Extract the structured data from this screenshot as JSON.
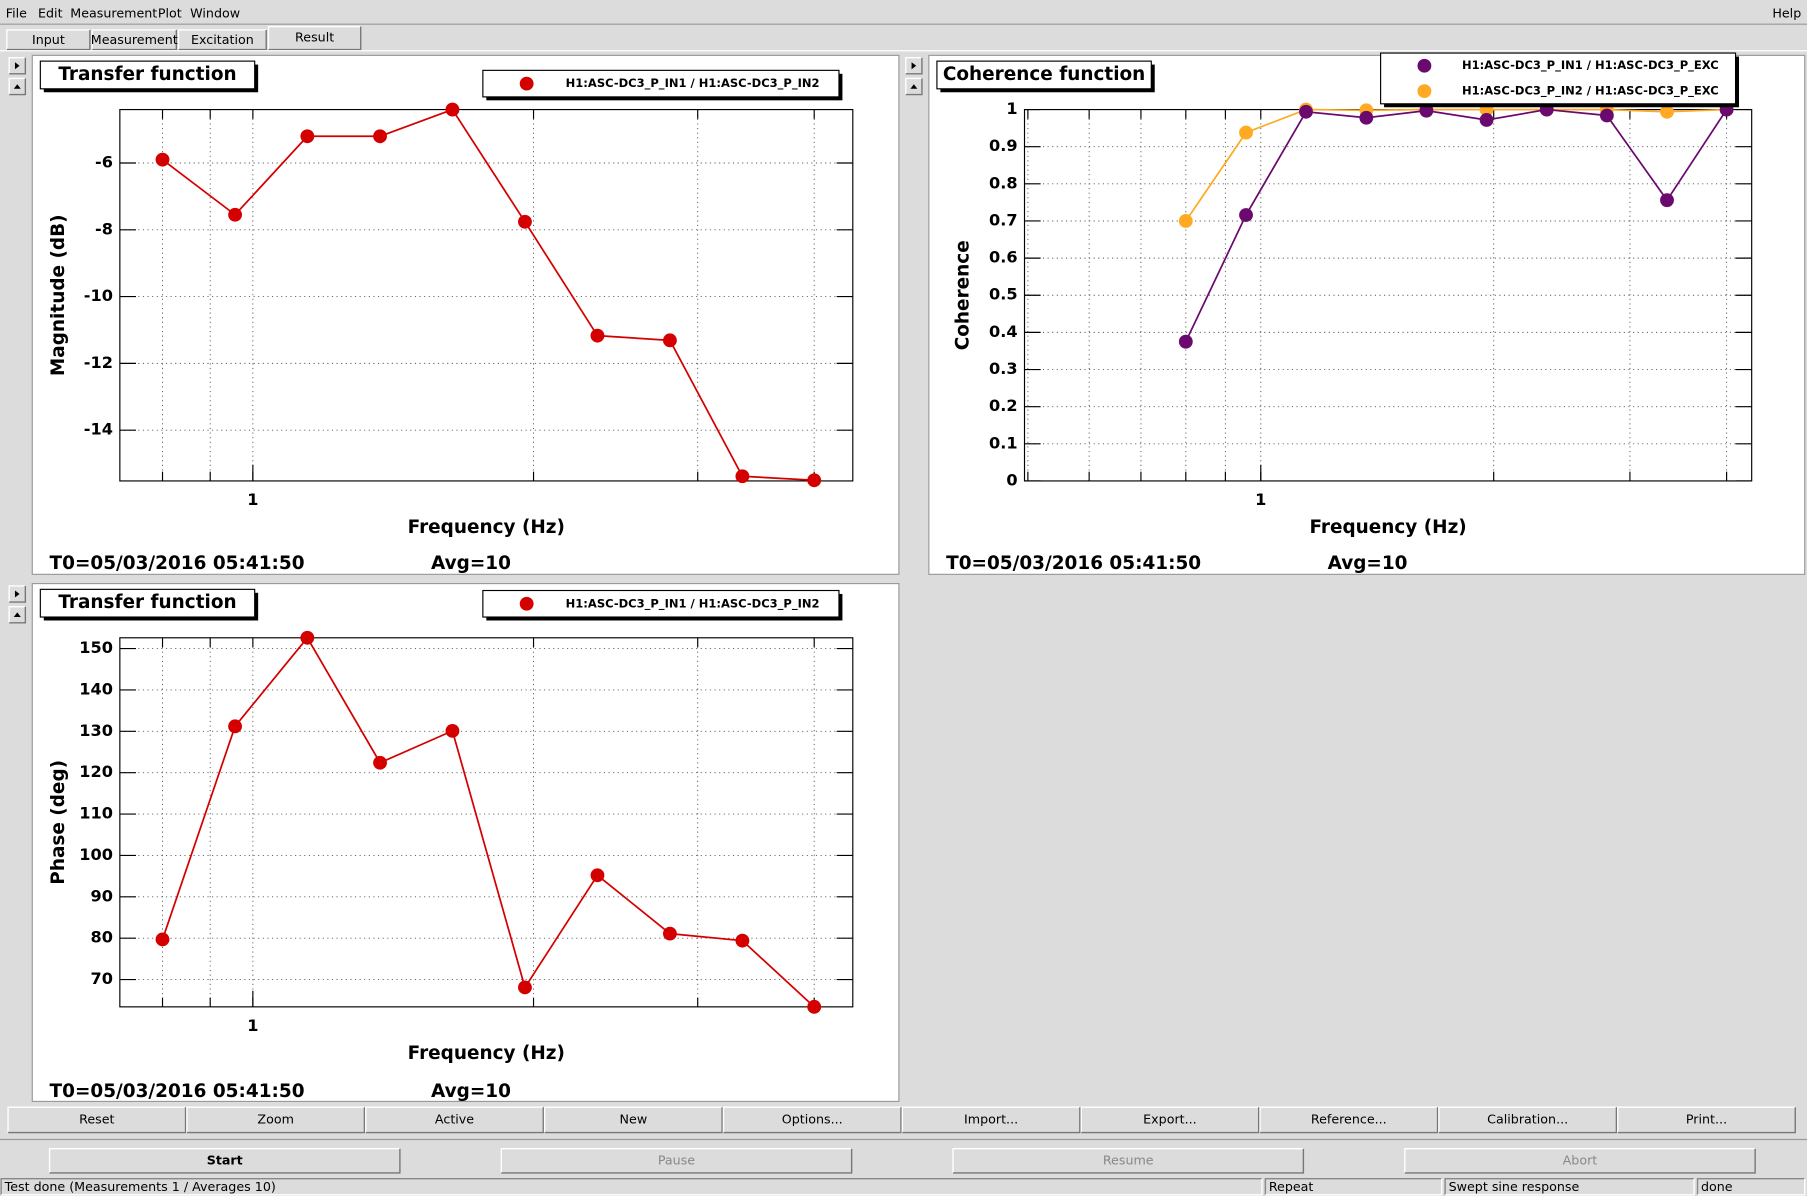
{
  "menu": {
    "items": [
      "File",
      "Edit",
      "Measurement",
      "Plot",
      "Window"
    ],
    "help": "Help"
  },
  "tabs": {
    "items": [
      "Input",
      "Measurement",
      "Excitation",
      "Result"
    ],
    "selected": 3
  },
  "chart_data": [
    {
      "type": "line",
      "title": "Transfer function",
      "xlabel": "Frequency (Hz)",
      "ylabel": "Magnitude (dB)",
      "x": [
        0.8,
        0.957,
        1.144,
        1.369,
        1.637,
        1.958,
        2.342,
        2.801,
        3.35,
        4.0
      ],
      "series": [
        {
          "name": "H1:ASC-DC3_P_IN1 / H1:ASC-DC3_P_IN2",
          "color": "#d40000",
          "values": [
            -5.9,
            -7.55,
            -5.2,
            -5.2,
            -4.4,
            -7.76,
            -11.17,
            -11.31,
            -15.38,
            -15.5
          ]
        }
      ],
      "xlim": [
        0.72,
        4.4
      ],
      "ylim": [
        -15.52,
        -4.4
      ],
      "log_x": true,
      "xticks": [
        1
      ],
      "yticks": [
        -6,
        -8,
        -10,
        -12,
        -14
      ],
      "grid": true,
      "legend": "top right",
      "t0": "T0=05/03/2016 05:41:50",
      "avg": "Avg=10"
    },
    {
      "type": "line",
      "title": "Coherence function",
      "xlabel": "Frequency (Hz)",
      "ylabel": "Coherence",
      "x": [
        0.8,
        0.957,
        1.144,
        1.369,
        1.637,
        1.958,
        2.342,
        2.801,
        3.35,
        4.0
      ],
      "series": [
        {
          "name": "H1:ASC-DC3_P_IN1 / H1:ASC-DC3_P_EXC",
          "color": "#6a0a6e",
          "values": [
            0.375,
            0.716,
            0.994,
            0.978,
            0.997,
            0.972,
            1.0,
            0.984,
            0.756,
            1.0
          ]
        },
        {
          "name": "H1:ASC-DC3_P_IN2 / H1:ASC-DC3_P_EXC",
          "color": "#ffaa22",
          "values": [
            0.7,
            0.938,
            1.0,
            0.998,
            1.0,
            1.0,
            1.0,
            1.0,
            0.994,
            1.0
          ]
        }
      ],
      "xlim": [
        0.495,
        4.31
      ],
      "ylim": [
        0,
        1
      ],
      "log_x": true,
      "xticks": [
        1
      ],
      "yticks": [
        0,
        0.1,
        0.2,
        0.3,
        0.4,
        0.5,
        0.6,
        0.7,
        0.8,
        0.9,
        1
      ],
      "grid": true,
      "legend": "top right",
      "t0": "T0=05/03/2016 05:41:50",
      "avg": "Avg=10"
    },
    {
      "type": "line",
      "title": "Transfer function",
      "xlabel": "Frequency (Hz)",
      "ylabel": "Phase (deg)",
      "x": [
        0.8,
        0.957,
        1.144,
        1.369,
        1.637,
        1.958,
        2.342,
        2.801,
        3.35,
        4.0
      ],
      "series": [
        {
          "name": "H1:ASC-DC3_P_IN1 / H1:ASC-DC3_P_IN2",
          "color": "#d40000",
          "values": [
            79.7,
            131.2,
            152.6,
            122.4,
            130.1,
            68.1,
            95.2,
            81.1,
            79.4,
            63.4
          ]
        }
      ],
      "xlim": [
        0.72,
        4.4
      ],
      "ylim": [
        63.4,
        152.6
      ],
      "log_x": true,
      "xticks": [
        1
      ],
      "yticks": [
        150,
        140,
        130,
        120,
        110,
        100,
        90,
        80,
        70
      ],
      "grid": true,
      "legend": "top right",
      "t0": "T0=05/03/2016 05:41:50",
      "avg": "Avg=10"
    }
  ],
  "plot_buttons": [
    "Reset",
    "Zoom",
    "Active",
    "New",
    "Options...",
    "Import...",
    "Export...",
    "Reference...",
    "Calibration...",
    "Print..."
  ],
  "control_buttons": [
    {
      "label": "Start",
      "enabled": true
    },
    {
      "label": "Pause",
      "enabled": false
    },
    {
      "label": "Resume",
      "enabled": false
    },
    {
      "label": "Abort",
      "enabled": false
    }
  ],
  "status_bar": [
    "Test done (Measurements 1 / Averages 10)",
    "Repeat",
    "Swept sine response",
    "done"
  ]
}
